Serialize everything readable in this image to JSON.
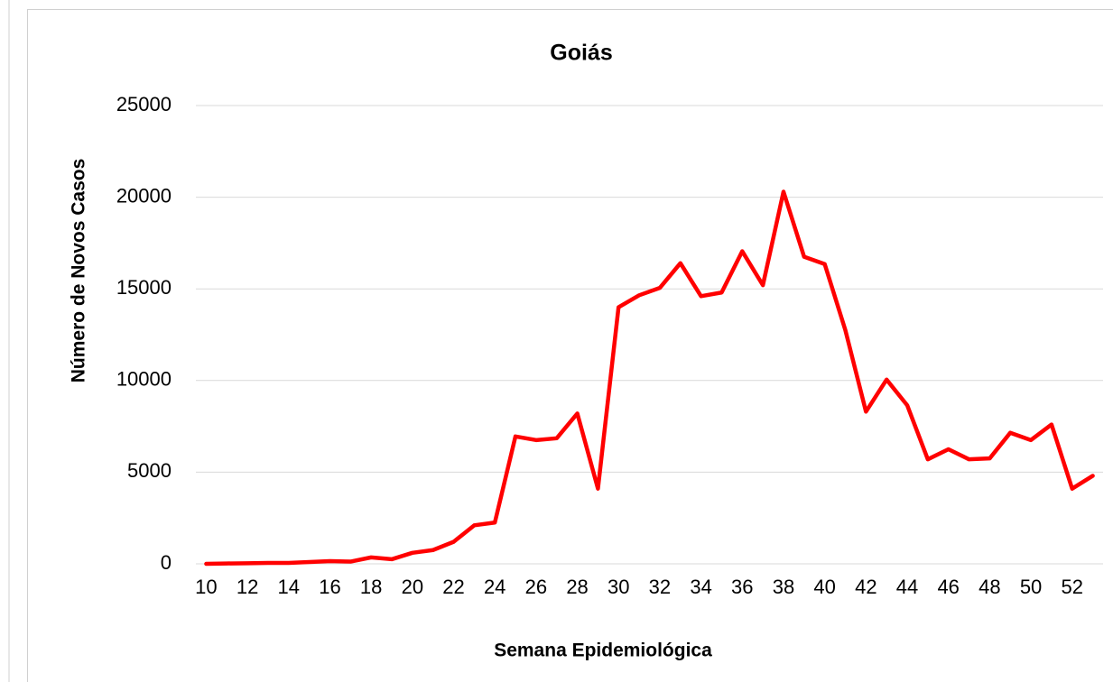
{
  "chart_data": {
    "type": "line",
    "title": "Goiás",
    "x_label": "Semana Epidemiológica",
    "y_label": "Número de Novos Casos",
    "x": [
      10,
      11,
      12,
      13,
      14,
      15,
      16,
      17,
      18,
      19,
      20,
      21,
      22,
      23,
      24,
      25,
      26,
      27,
      28,
      29,
      30,
      31,
      32,
      33,
      34,
      35,
      36,
      37,
      38,
      39,
      40,
      41,
      42,
      43,
      44,
      45,
      46,
      47,
      48,
      49,
      50,
      51,
      52,
      53
    ],
    "values": [
      0,
      20,
      30,
      50,
      50,
      100,
      150,
      120,
      350,
      250,
      600,
      750,
      1200,
      2100,
      2250,
      6950,
      6750,
      6850,
      8200,
      4100,
      14000,
      14650,
      15050,
      16400,
      14600,
      14800,
      17050,
      15200,
      20300,
      16750,
      16350,
      12750,
      8300,
      10050,
      8650,
      5700,
      6250,
      5700,
      5750,
      7150,
      6750,
      7600,
      4100,
      4800
    ],
    "color": "#ff0000",
    "xlim": [
      9.5,
      53.5
    ],
    "xticks": [
      10,
      12,
      14,
      16,
      18,
      20,
      22,
      24,
      26,
      28,
      30,
      32,
      34,
      36,
      38,
      40,
      42,
      44,
      46,
      48,
      50,
      52
    ],
    "ylim": [
      0,
      25000
    ],
    "yticks": [
      0,
      5000,
      10000,
      15000,
      20000,
      25000
    ],
    "grid": true
  }
}
